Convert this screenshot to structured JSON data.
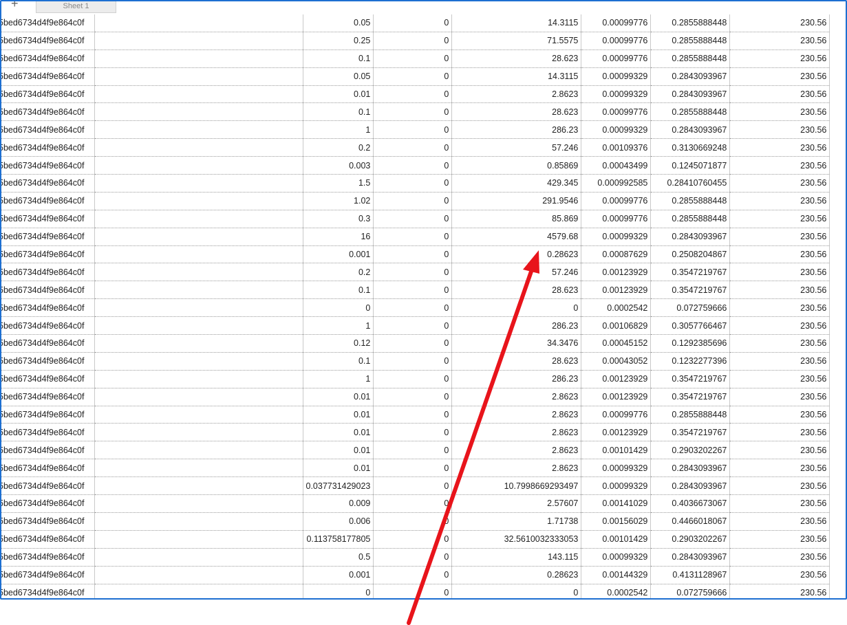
{
  "tabs": {
    "add_label": "+",
    "sheet_label": "Sheet 1"
  },
  "colors": {
    "frame": "#1d6fd1",
    "annotation_arrow": "#e8141b"
  },
  "rows": [
    [
      "5bed6734d4f9e864c0f",
      "",
      "0.05",
      "0",
      "14.3115",
      "0.00099776",
      "0.2855888448",
      "230.56"
    ],
    [
      "5bed6734d4f9e864c0f",
      "",
      "0.25",
      "0",
      "71.5575",
      "0.00099776",
      "0.2855888448",
      "230.56"
    ],
    [
      "5bed6734d4f9e864c0f",
      "",
      "0.1",
      "0",
      "28.623",
      "0.00099776",
      "0.2855888448",
      "230.56"
    ],
    [
      "5bed6734d4f9e864c0f",
      "",
      "0.05",
      "0",
      "14.3115",
      "0.00099329",
      "0.2843093967",
      "230.56"
    ],
    [
      "5bed6734d4f9e864c0f",
      "",
      "0.01",
      "0",
      "2.8623",
      "0.00099329",
      "0.2843093967",
      "230.56"
    ],
    [
      "5bed6734d4f9e864c0f",
      "",
      "0.1",
      "0",
      "28.623",
      "0.00099776",
      "0.2855888448",
      "230.56"
    ],
    [
      "5bed6734d4f9e864c0f",
      "",
      "1",
      "0",
      "286.23",
      "0.00099329",
      "0.2843093967",
      "230.56"
    ],
    [
      "5bed6734d4f9e864c0f",
      "",
      "0.2",
      "0",
      "57.246",
      "0.00109376",
      "0.3130669248",
      "230.56"
    ],
    [
      "5bed6734d4f9e864c0f",
      "",
      "0.003",
      "0",
      "0.85869",
      "0.00043499",
      "0.1245071877",
      "230.56"
    ],
    [
      "5bed6734d4f9e864c0f",
      "",
      "1.5",
      "0",
      "429.345",
      "0.000992585",
      "0.28410760455",
      "230.56"
    ],
    [
      "5bed6734d4f9e864c0f",
      "",
      "1.02",
      "0",
      "291.9546",
      "0.00099776",
      "0.2855888448",
      "230.56"
    ],
    [
      "5bed6734d4f9e864c0f",
      "",
      "0.3",
      "0",
      "85.869",
      "0.00099776",
      "0.2855888448",
      "230.56"
    ],
    [
      "5bed6734d4f9e864c0f",
      "",
      "16",
      "0",
      "4579.68",
      "0.00099329",
      "0.2843093967",
      "230.56"
    ],
    [
      "5bed6734d4f9e864c0f",
      "",
      "0.001",
      "0",
      "0.28623",
      "0.00087629",
      "0.2508204867",
      "230.56"
    ],
    [
      "5bed6734d4f9e864c0f",
      "",
      "0.2",
      "0",
      "57.246",
      "0.00123929",
      "0.3547219767",
      "230.56"
    ],
    [
      "5bed6734d4f9e864c0f",
      "",
      "0.1",
      "0",
      "28.623",
      "0.00123929",
      "0.3547219767",
      "230.56"
    ],
    [
      "5bed6734d4f9e864c0f",
      "",
      "0",
      "0",
      "0",
      "0.0002542",
      "0.072759666",
      "230.56"
    ],
    [
      "5bed6734d4f9e864c0f",
      "",
      "1",
      "0",
      "286.23",
      "0.00106829",
      "0.3057766467",
      "230.56"
    ],
    [
      "5bed6734d4f9e864c0f",
      "",
      "0.12",
      "0",
      "34.3476",
      "0.00045152",
      "0.1292385696",
      "230.56"
    ],
    [
      "5bed6734d4f9e864c0f",
      "",
      "0.1",
      "0",
      "28.623",
      "0.00043052",
      "0.1232277396",
      "230.56"
    ],
    [
      "5bed6734d4f9e864c0f",
      "",
      "1",
      "0",
      "286.23",
      "0.00123929",
      "0.3547219767",
      "230.56"
    ],
    [
      "5bed6734d4f9e864c0f",
      "",
      "0.01",
      "0",
      "2.8623",
      "0.00123929",
      "0.3547219767",
      "230.56"
    ],
    [
      "5bed6734d4f9e864c0f",
      "",
      "0.01",
      "0",
      "2.8623",
      "0.00099776",
      "0.2855888448",
      "230.56"
    ],
    [
      "5bed6734d4f9e864c0f",
      "",
      "0.01",
      "0",
      "2.8623",
      "0.00123929",
      "0.3547219767",
      "230.56"
    ],
    [
      "5bed6734d4f9e864c0f",
      "",
      "0.01",
      "0",
      "2.8623",
      "0.00101429",
      "0.2903202267",
      "230.56"
    ],
    [
      "5bed6734d4f9e864c0f",
      "",
      "0.01",
      "0",
      "2.8623",
      "0.00099329",
      "0.2843093967",
      "230.56"
    ],
    [
      "5bed6734d4f9e864c0f",
      "",
      "0.037731429023",
      "0",
      "10.7998669293497",
      "0.00099329",
      "0.2843093967",
      "230.56"
    ],
    [
      "5bed6734d4f9e864c0f",
      "",
      "0.009",
      "0",
      "2.57607",
      "0.00141029",
      "0.4036673067",
      "230.56"
    ],
    [
      "5bed6734d4f9e864c0f",
      "",
      "0.006",
      "0",
      "1.71738",
      "0.00156029",
      "0.4466018067",
      "230.56"
    ],
    [
      "5bed6734d4f9e864c0f",
      "",
      "0.113758177805",
      "0",
      "32.5610032333053",
      "0.00101429",
      "0.2903202267",
      "230.56"
    ],
    [
      "5bed6734d4f9e864c0f",
      "",
      "0.5",
      "0",
      "143.115",
      "0.00099329",
      "0.2843093967",
      "230.56"
    ],
    [
      "5bed6734d4f9e864c0f",
      "",
      "0.001",
      "0",
      "0.28623",
      "0.00144329",
      "0.4131128967",
      "230.56"
    ],
    [
      "5bed6734d4f9e864c0f",
      "",
      "0",
      "0",
      "0",
      "0.0002542",
      "0.072759666",
      "230.56"
    ]
  ]
}
